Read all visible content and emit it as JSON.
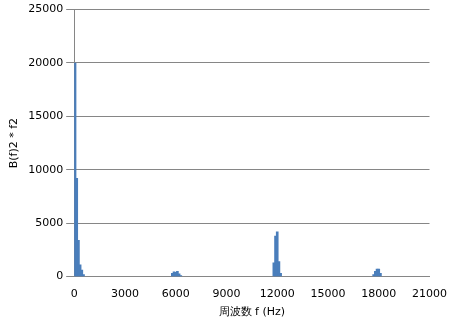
{
  "chart_data": {
    "type": "bar",
    "x_label": "周波数 f (Hz)",
    "y_label": "B(f)2 * f2",
    "x": [
      50,
      150,
      250,
      350,
      450,
      550,
      5800,
      5900,
      6000,
      6100,
      6200,
      6300,
      11800,
      11900,
      12000,
      12100,
      12200,
      17700,
      17800,
      17900,
      18000,
      18100
    ],
    "values": [
      20000,
      9200,
      3400,
      1100,
      600,
      200,
      300,
      450,
      400,
      500,
      250,
      100,
      1300,
      3800,
      4200,
      1400,
      300,
      200,
      500,
      700,
      700,
      300
    ],
    "color": "#4a7ebb",
    "xlim": [
      0,
      21000
    ],
    "xticks": [
      0,
      3000,
      6000,
      9000,
      12000,
      15000,
      18000,
      21000
    ],
    "ylim": [
      0,
      25000
    ],
    "yticks": [
      0,
      5000,
      10000,
      15000,
      20000,
      25000
    ],
    "grid": true
  }
}
